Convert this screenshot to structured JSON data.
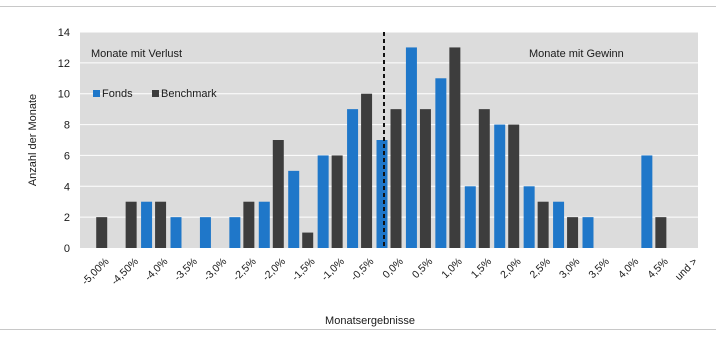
{
  "chart_data": {
    "type": "bar",
    "title": "",
    "xlabel": "Monatsergebnisse",
    "ylabel": "Anzahl der Monate",
    "ylim": [
      0,
      14
    ],
    "yticks": [
      0,
      2,
      4,
      6,
      8,
      10,
      12,
      14
    ],
    "grid": true,
    "legend_position": "top-left",
    "colors": {
      "Fonds": "#1f77c9",
      "Benchmark": "#3d3d3d",
      "plot_bg": "#dcdcdc",
      "grid": "#ffffff"
    },
    "categories": [
      "-5,00%",
      "-4,50%",
      "-4,0%",
      "-3,5%",
      "-3,0%",
      "-2,5%",
      "-2,0%",
      "-1,5%",
      "-1,0%",
      "-0,5%",
      "0,0%",
      "0,5%",
      "1,0%",
      "1,5%",
      "2,0%",
      "2,5%",
      "3,0%",
      "3,5%",
      "4,0%",
      "4,5%",
      "und >"
    ],
    "series": [
      {
        "name": "Fonds",
        "values": [
          0,
          0,
          3,
          2,
          2,
          2,
          3,
          5,
          6,
          9,
          7,
          13,
          11,
          4,
          8,
          4,
          3,
          2,
          0,
          6,
          0
        ]
      },
      {
        "name": "Benchmark",
        "values": [
          2,
          3,
          3,
          0,
          0,
          3,
          7,
          1,
          6,
          10,
          9,
          9,
          13,
          9,
          8,
          3,
          2,
          0,
          0,
          2,
          0
        ]
      }
    ],
    "annotations": {
      "loss": "Monate mit Verlust",
      "gain": "Monate mit Gewinn"
    }
  }
}
